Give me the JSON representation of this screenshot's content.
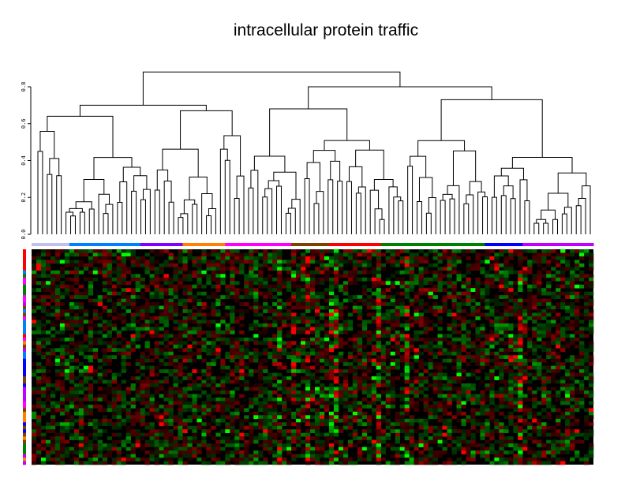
{
  "chart_data": {
    "type": "heatmap",
    "title": "intracellular protein traffic",
    "dendrogram": {
      "orientation": "columns-top",
      "ylim": [
        0,
        0.8
      ],
      "y_ticks": [
        "0.0",
        "0.2",
        "0.4",
        "0.6",
        "0.8"
      ],
      "y_tick_values": [
        0,
        0.2,
        0.4,
        0.6,
        0.8
      ],
      "leaf_count": 119,
      "top_structure": {
        "h": 0.88,
        "children": [
          {
            "h": 0.7,
            "children": [
              {
                "h": 0.64,
                "n": 25
              },
              {
                "h": 0.67,
                "n": 20
              }
            ]
          },
          {
            "h": 0.8,
            "children": [
              {
                "h": 0.68,
                "n": 34
              },
              {
                "h": 0.73,
                "n": 40
              }
            ]
          }
        ]
      }
    },
    "column_clusters": [
      {
        "color": "#c0c0f0",
        "n": 8
      },
      {
        "color": "#0080ff",
        "n": 15
      },
      {
        "color": "#8000ff",
        "n": 9
      },
      {
        "color": "#ff8000",
        "n": 9
      },
      {
        "color": "#ff00ff",
        "n": 14
      },
      {
        "color": "#804000",
        "n": 8
      },
      {
        "color": "#ff0000",
        "n": 11
      },
      {
        "color": "#008000",
        "n": 22
      },
      {
        "color": "#0000ff",
        "n": 8
      },
      {
        "color": "#c000ff",
        "n": 15
      }
    ],
    "row_colors": [
      "#ff0000",
      "#ff0000",
      "#ff0000",
      "#ff0000",
      "#ff0000",
      "#ff0000",
      "#0080ff",
      "#008000",
      "#ff00ff",
      "#ff00ff",
      "#008000",
      "#008000",
      "#008000",
      "#ff00ff",
      "#ff00ff",
      "#c000ff",
      "#804000",
      "#0080ff",
      "#804000",
      "#ff00ff",
      "#0080ff",
      "#0080ff",
      "#0080ff",
      "#0080ff",
      "#ff0000",
      "#ff00ff",
      "#ff8000",
      "#804000",
      "#c000ff",
      "#0080ff",
      "#0080ff",
      "#0000ff",
      "#0000ff",
      "#0000ff",
      "#0000ff",
      "#0000ff",
      "#804000",
      "#804000",
      "#0000ff",
      "#c000ff",
      "#c000ff",
      "#c000ff",
      "#c000ff",
      "#ff00ff",
      "#ff00ff",
      "#804000",
      "#ff8000",
      "#ff8000",
      "#ff8000",
      "#0000ff",
      "#804000",
      "#0000ff",
      "#804000",
      "#ff8000",
      "#804000",
      "#008000",
      "#008000",
      "#008000",
      "#c000ff",
      "#ff8000",
      "#c000ff"
    ],
    "heatmap": {
      "rows": 61,
      "cols": 119,
      "color_scale": {
        "low": "#00ff00",
        "mid": "#000000",
        "high": "#ff0000"
      },
      "hot_columns": [
        52,
        55,
        58,
        63,
        64,
        73,
        79,
        103
      ]
    }
  }
}
